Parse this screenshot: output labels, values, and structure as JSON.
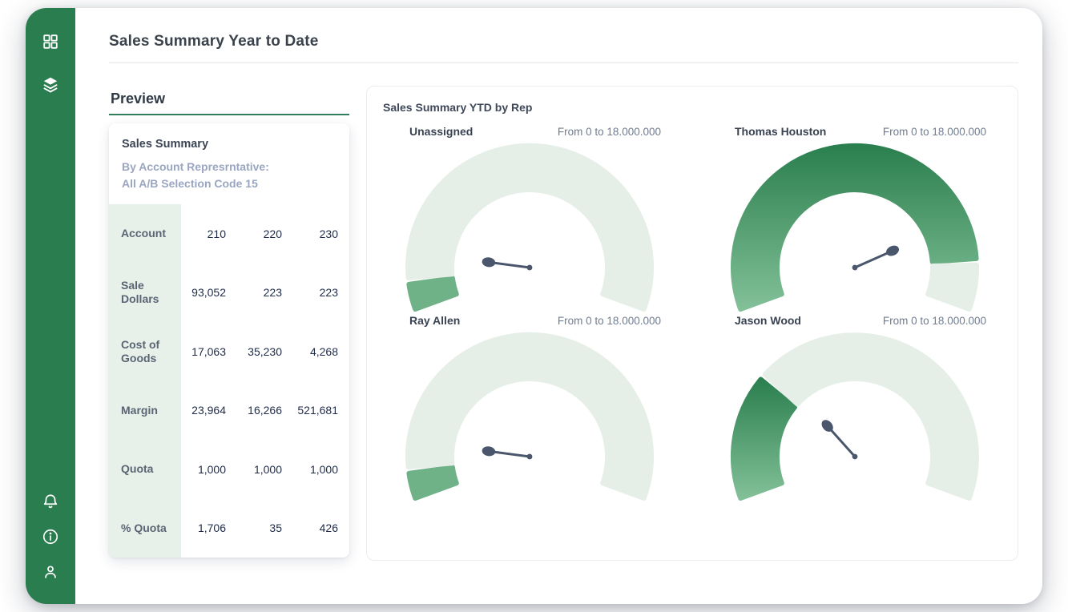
{
  "window": {
    "title": "Sales Summary Year to Date"
  },
  "sidebar": {
    "icons_top": [
      {
        "name": "dashboard-grid-icon"
      },
      {
        "name": "layers-icon"
      }
    ],
    "icons_bottom": [
      {
        "name": "bell-icon"
      },
      {
        "name": "info-icon"
      },
      {
        "name": "user-icon"
      }
    ]
  },
  "preview": {
    "heading": "Preview",
    "card": {
      "title": "Sales Summary",
      "subtitle_line1": "By Account Represrntative:",
      "subtitle_line2": "All A/B Selection Code 15",
      "rows": [
        {
          "label": "Account",
          "values": [
            "210",
            "220",
            "230"
          ]
        },
        {
          "label": "Sale Dollars",
          "values": [
            "93,052",
            "223",
            "223"
          ]
        },
        {
          "label": "Cost of Goods",
          "values": [
            "17,063",
            "35,230",
            "4,268"
          ]
        },
        {
          "label": "Margin",
          "values": [
            "23,964",
            "16,266",
            "521,681"
          ]
        },
        {
          "label": "Quota",
          "values": [
            "1,000",
            "1,000",
            "1,000"
          ]
        },
        {
          "label": "% Quota",
          "values": [
            "1,706",
            "35",
            "426"
          ]
        }
      ]
    }
  },
  "gauges_panel": {
    "heading": "Sales Summary YTD by Rep"
  },
  "chart_data": [
    {
      "type": "gauge",
      "title": "Unassigned",
      "range_label": "From 0 to 18.000.000",
      "min": 0,
      "max": 18000000,
      "fill_fraction": 0.055,
      "needle_fraction": 0.125,
      "estimated_value": 1000000,
      "fill_style": "solid"
    },
    {
      "type": "gauge",
      "title": "Thomas Houston",
      "range_label": "From 0 to 18.000.000",
      "min": 0,
      "max": 18000000,
      "fill_fraction": 0.89,
      "needle_fraction": 0.8,
      "estimated_value": 16000000,
      "fill_style": "gradient"
    },
    {
      "type": "gauge",
      "title": "Ray Allen",
      "range_label": "From 0 to 18.000.000",
      "min": 0,
      "max": 18000000,
      "fill_fraction": 0.055,
      "needle_fraction": 0.125,
      "estimated_value": 1000000,
      "fill_style": "solid"
    },
    {
      "type": "gauge",
      "title": "Jason Wood",
      "range_label": "From 0 to 18.000.000",
      "min": 0,
      "max": 18000000,
      "fill_fraction": 0.27,
      "needle_fraction": 0.31,
      "estimated_value": 4900000,
      "fill_style": "gradient"
    }
  ],
  "colors": {
    "sidebar_green": "#2A7D4F",
    "gauge_track": "#E6EFE7",
    "gauge_fill_solid": "#6FB287",
    "gauge_gradient_top": "#2B7F4F",
    "gauge_gradient_bottom": "#82C098",
    "needle": "#4A566C",
    "preview_underline": "#2F7D5B",
    "table_label_bg": "#E7F0E9",
    "number_text": "#1F2B48"
  }
}
